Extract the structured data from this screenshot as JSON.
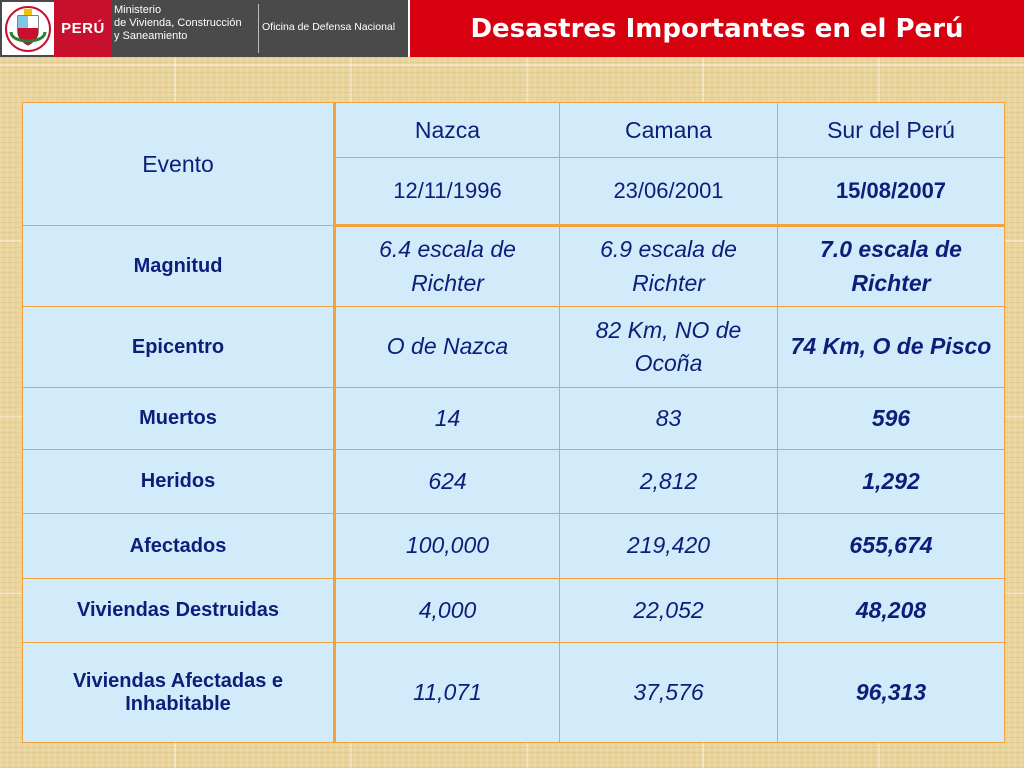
{
  "header": {
    "emblem_icon": "peru-coat-of-arms-icon",
    "country": "PERÚ",
    "ministry_lines": [
      "Ministerio",
      "de Vivienda, Construcción",
      "y Saneamiento"
    ],
    "office": "Oficina de Defensa Nacional",
    "title": "Desastres Importantes en el Perú"
  },
  "colors": {
    "title_bar": "#d6000f",
    "table_fill": "#d2ebfb",
    "table_border": "#f2a23c",
    "text": "#0e1a87"
  },
  "table": {
    "corner_label": "Evento",
    "columns": [
      "Nazca",
      "Camana",
      "Sur del Perú"
    ],
    "dates": [
      "12/11/1996",
      "23/06/2001",
      "15/08/2007"
    ],
    "rows": [
      {
        "label": "Magnitud",
        "values": [
          "6.4 escala de Richter",
          "6.9 escala de Richter",
          "7.0 escala de Richter"
        ]
      },
      {
        "label": "Epicentro",
        "values": [
          "O de Nazca",
          "82 Km, NO de Ocoña",
          "74 Km, O de Pisco"
        ]
      },
      {
        "label": "Muertos",
        "values": [
          "14",
          "83",
          "596"
        ]
      },
      {
        "label": "Heridos",
        "values": [
          "624",
          "2,812",
          "1,292"
        ]
      },
      {
        "label": "Afectados",
        "values": [
          "100,000",
          "219,420",
          "655,674"
        ]
      },
      {
        "label": "Viviendas Destruidas",
        "values": [
          "4,000",
          "22,052",
          "48,208"
        ]
      },
      {
        "label": "Viviendas Afectadas e Inhabitable",
        "values": [
          "11,071",
          "37,576",
          "96,313"
        ]
      }
    ]
  }
}
